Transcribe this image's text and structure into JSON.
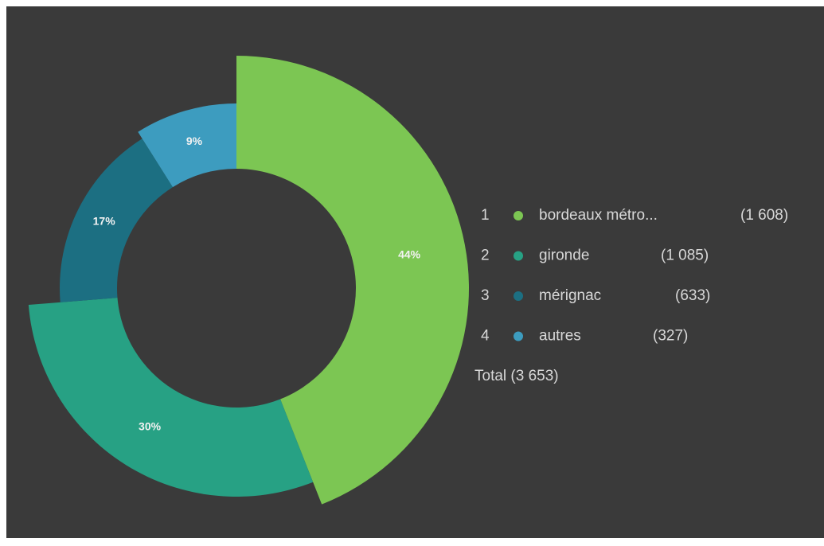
{
  "chart_data": {
    "type": "donut",
    "categories": [
      "bordeaux métro...",
      "gironde",
      "mérignac",
      "autres"
    ],
    "ranks": [
      1,
      2,
      3,
      4
    ],
    "values": [
      1608,
      1085,
      633,
      327
    ],
    "value_labels": [
      "(1 608)",
      "(1 085)",
      "(633)",
      "(327)"
    ],
    "percentages": [
      44,
      30,
      17,
      9
    ],
    "percentage_labels": [
      "44%",
      "30%",
      "17%",
      "9%"
    ],
    "colors": [
      "#7cc653",
      "#27a184",
      "#1c6f82",
      "#3d9cbf"
    ],
    "total": 3653,
    "total_label": "Total (3 653)"
  }
}
